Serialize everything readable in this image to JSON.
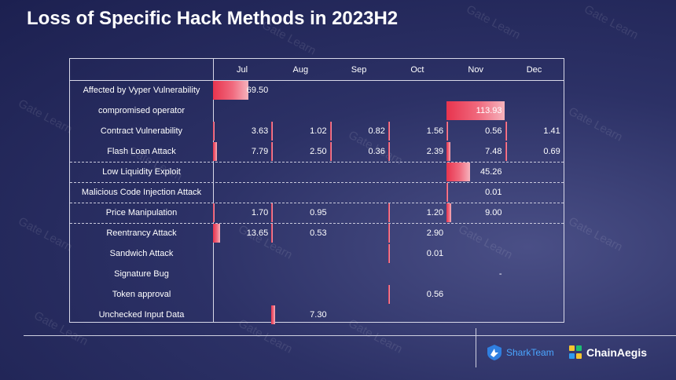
{
  "title": "Loss of Specific Hack Methods in 2023H2",
  "watermark_text": "Gate Learn",
  "logos": {
    "sharkteam": "SharkTeam",
    "chainaegis": "ChainAegis"
  },
  "colors": {
    "bar_start": "#e8344e",
    "bar_end": "#f6b3bd",
    "background": "#2c3166"
  },
  "chart_data": {
    "type": "table",
    "title": "Loss of Specific Hack Methods in 2023H2",
    "columns": [
      "Jul",
      "Aug",
      "Sep",
      "Oct",
      "Nov",
      "Dec"
    ],
    "rows": [
      {
        "label": "Affected by Vyper Vulnerability",
        "values": [
          "69.50",
          "",
          "",
          "",
          "",
          ""
        ],
        "nums": [
          69.5,
          null,
          null,
          null,
          null,
          null
        ]
      },
      {
        "label": "compromised operator",
        "values": [
          "",
          "",
          "",
          "",
          "113.93",
          ""
        ],
        "nums": [
          null,
          null,
          null,
          null,
          113.93,
          null
        ]
      },
      {
        "label": "Contract Vulnerability",
        "values": [
          "3.63",
          "1.02",
          "0.82",
          "1.56",
          "0.56",
          "1.41"
        ],
        "nums": [
          3.63,
          1.02,
          0.82,
          1.56,
          0.56,
          1.41
        ]
      },
      {
        "label": "Flash Loan Attack",
        "values": [
          "7.79",
          "2.50",
          "0.36",
          "2.39",
          "7.48",
          "0.69"
        ],
        "nums": [
          7.79,
          2.5,
          0.36,
          2.39,
          7.48,
          0.69
        ]
      },
      {
        "label": "Low Liquidity Exploit",
        "values": [
          "",
          "",
          "",
          "",
          "45.26",
          ""
        ],
        "nums": [
          null,
          null,
          null,
          null,
          45.26,
          null
        ]
      },
      {
        "label": "Malicious Code Injection Attack",
        "values": [
          "",
          "",
          "",
          "",
          "0.01",
          ""
        ],
        "nums": [
          null,
          null,
          null,
          null,
          0.01,
          null
        ]
      },
      {
        "label": "Price Manipulation",
        "values": [
          "1.70",
          "0.95",
          "",
          "1.20",
          "9.00",
          ""
        ],
        "nums": [
          1.7,
          0.95,
          null,
          1.2,
          9.0,
          null
        ]
      },
      {
        "label": "Reentrancy Attack",
        "values": [
          "13.65",
          "0.53",
          "",
          "2.90",
          "",
          ""
        ],
        "nums": [
          13.65,
          0.53,
          null,
          2.9,
          null,
          null
        ]
      },
      {
        "label": "Sandwich Attack",
        "values": [
          "",
          "",
          "",
          "0.01",
          "",
          ""
        ],
        "nums": [
          null,
          null,
          null,
          0.01,
          null,
          null
        ]
      },
      {
        "label": "Signature Bug",
        "values": [
          "",
          "",
          "",
          "",
          "-",
          ""
        ],
        "nums": [
          null,
          null,
          null,
          null,
          null,
          null
        ]
      },
      {
        "label": "Token approval",
        "values": [
          "",
          "",
          "",
          "0.56",
          "",
          ""
        ],
        "nums": [
          null,
          null,
          null,
          0.56,
          null,
          null
        ]
      },
      {
        "label": "Unchecked Input Data",
        "values": [
          "",
          "7.30",
          "",
          "",
          "",
          ""
        ],
        "nums": [
          null,
          7.3,
          null,
          null,
          null,
          null
        ]
      }
    ],
    "bar_max": 113.93,
    "units": ""
  }
}
